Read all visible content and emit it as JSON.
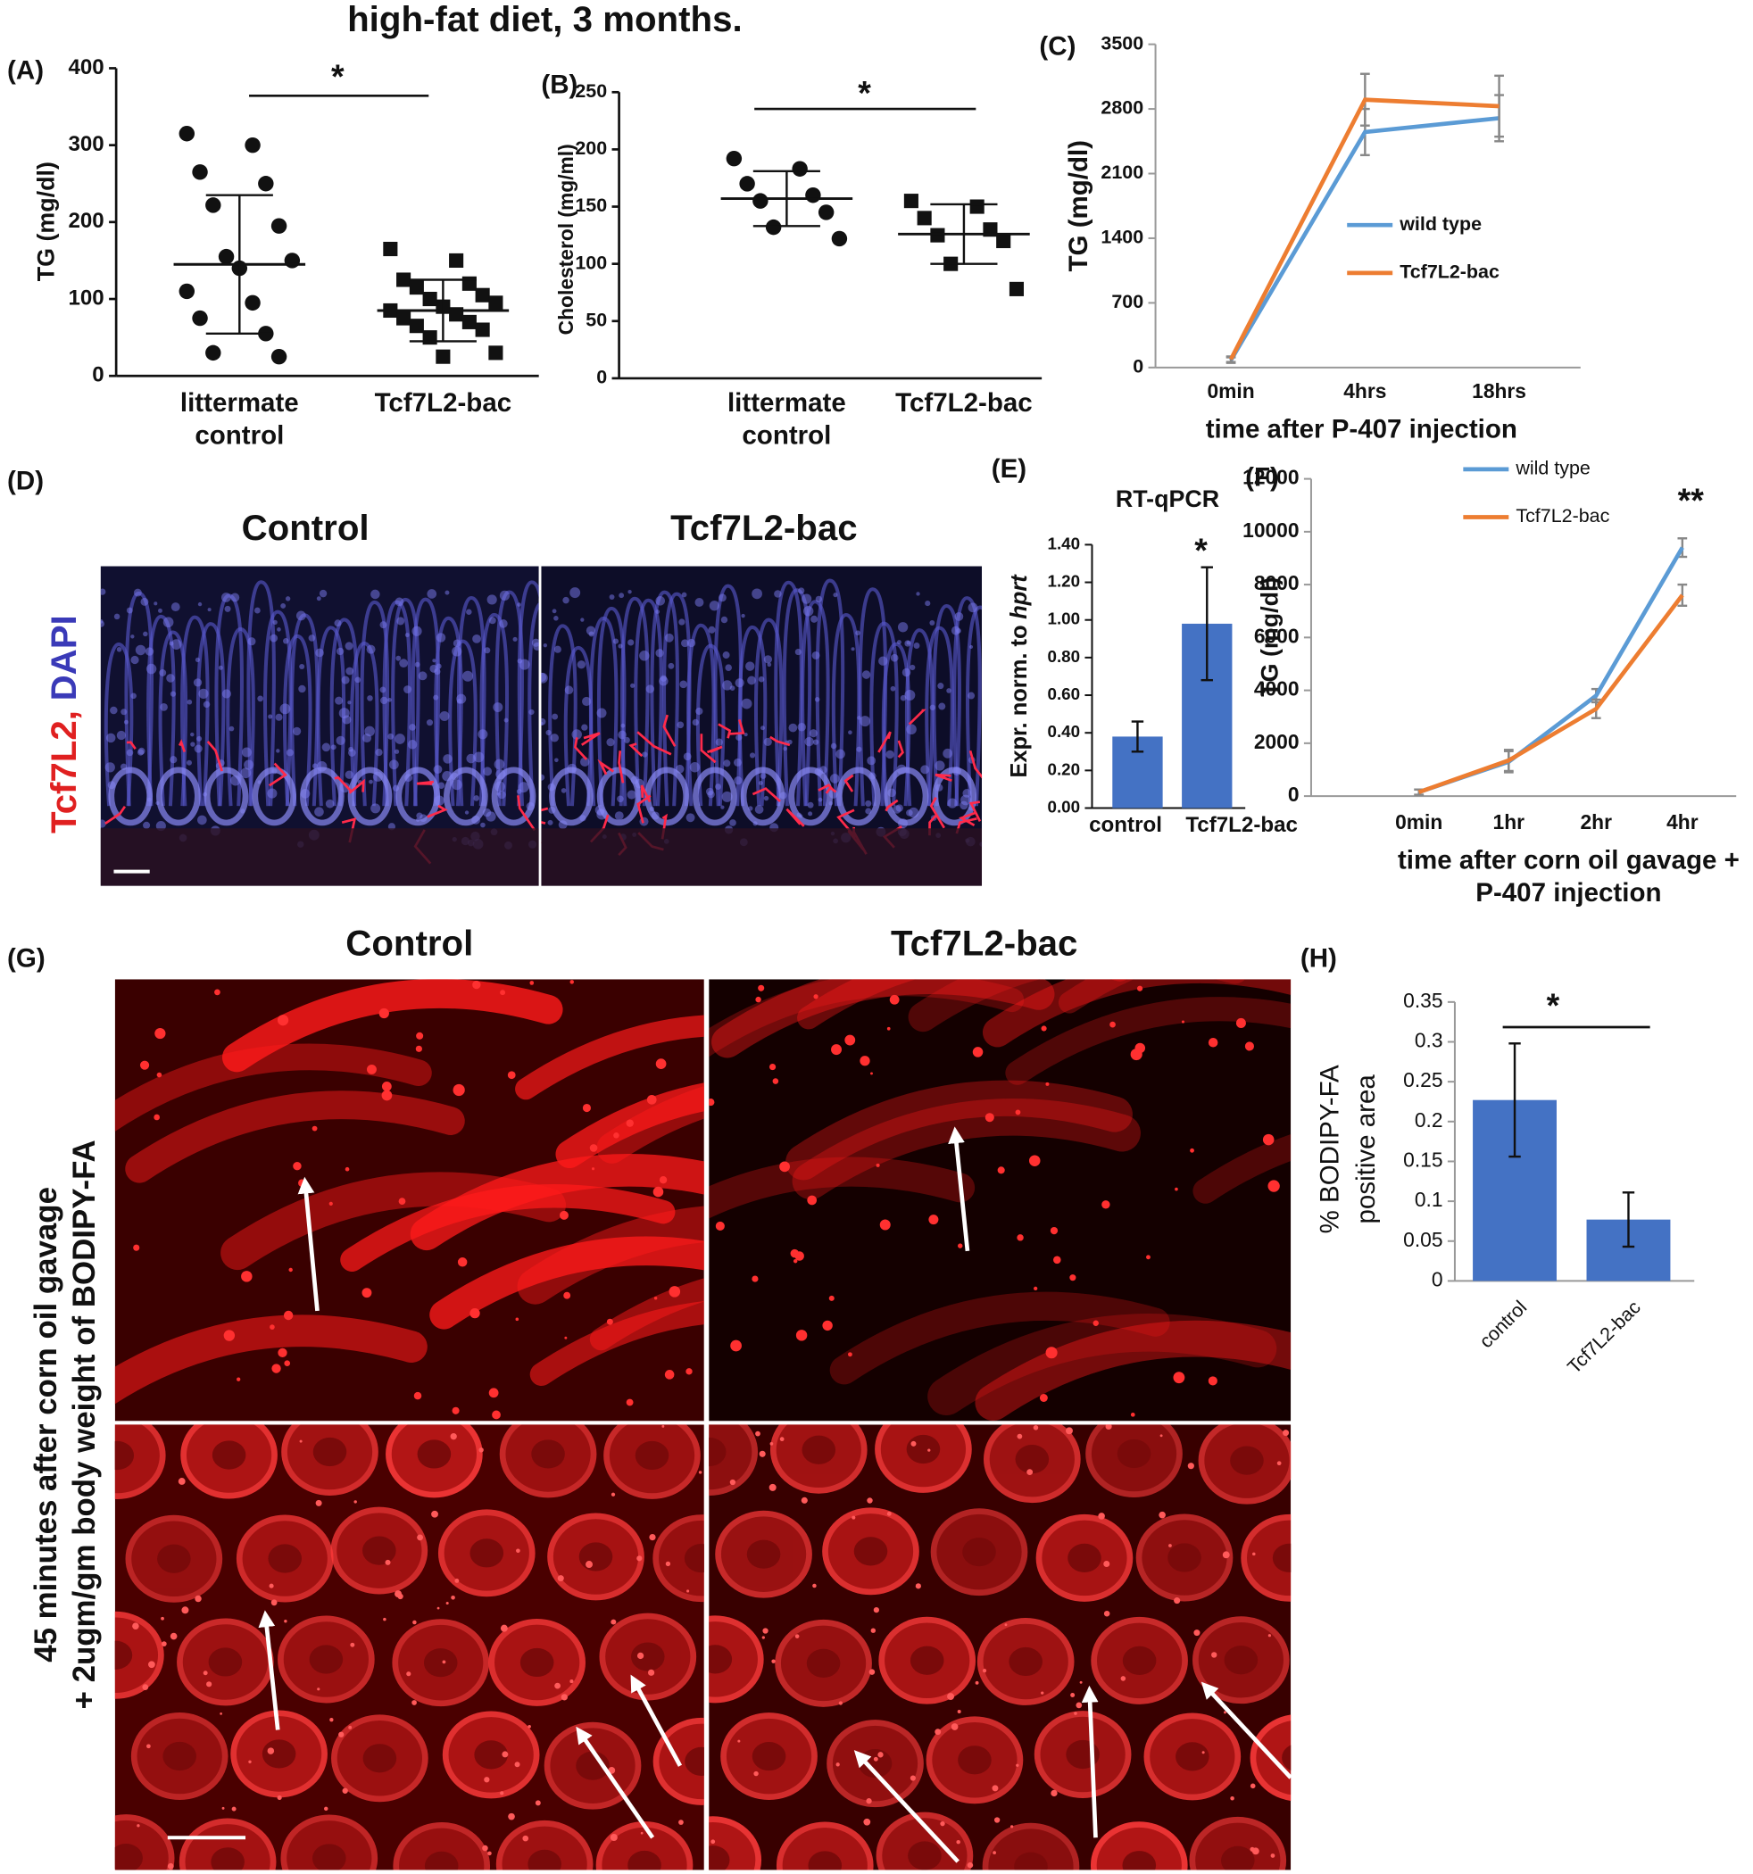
{
  "figure": {
    "title": "high-fat diet, 3 months.",
    "panel_labels": [
      "(A)",
      "(B)",
      "(C)",
      "(D)",
      "(E)",
      "(F)",
      "(G)",
      "(H)"
    ],
    "d": {
      "titles": [
        "Control",
        "Tcf7L2-bac"
      ],
      "stain_red": "Tcf7L2,",
      "stain_blue": "DAPI"
    },
    "g": {
      "titles": [
        "Control",
        "Tcf7L2-bac"
      ],
      "side_label": [
        "45 minutes after corn oil gavage",
        "+ 2ugm/gm body weight of BODIPY-FA"
      ]
    }
  },
  "chart_data": [
    {
      "type": "dot",
      "ylabel": "TG (mg/dl)",
      "categories": [
        [
          "littermate",
          "control"
        ],
        [
          "Tcf7L2-bac"
        ]
      ],
      "points": [
        [
          315,
          300,
          265,
          250,
          222,
          195,
          155,
          150,
          140,
          110,
          95,
          75,
          55,
          30,
          25
        ],
        [
          165,
          150,
          125,
          120,
          115,
          105,
          100,
          95,
          90,
          85,
          80,
          75,
          70,
          65,
          60,
          50,
          30,
          25
        ]
      ],
      "means": [
        145,
        85
      ],
      "sd": [
        90,
        40
      ],
      "markers": [
        "circle",
        "square"
      ],
      "color": "#111111",
      "ylim": [
        0,
        400
      ],
      "yticks": [
        0,
        100,
        200,
        300,
        400
      ],
      "significance": "*"
    },
    {
      "type": "dot",
      "ylabel": "Cholesterol (mg/ml)",
      "categories": [
        [
          "littermate",
          "control"
        ],
        [
          "Tcf7L2-bac"
        ]
      ],
      "points": [
        [
          192,
          183,
          170,
          160,
          155,
          145,
          132,
          122
        ],
        [
          155,
          150,
          140,
          130,
          125,
          120,
          100,
          78
        ]
      ],
      "means": [
        157,
        126
      ],
      "sd": [
        24,
        26
      ],
      "markers": [
        "circle",
        "square"
      ],
      "color": "#111111",
      "ylim": [
        0,
        250
      ],
      "yticks": [
        0,
        50,
        100,
        150,
        200,
        250
      ],
      "significance": "*"
    },
    {
      "type": "line",
      "ylabel": "TG (mg/dl)",
      "xlabel": [
        "time after P-407 injection"
      ],
      "categories": [
        "0min",
        "4hrs",
        "18hrs"
      ],
      "series": [
        {
          "name": "wild type",
          "color": "#5b9bd5",
          "values": [
            80,
            2550,
            2700
          ],
          "errors": [
            30,
            250,
            250
          ]
        },
        {
          "name": "Tcf7L2-bac",
          "color": "#ed7d31",
          "values": [
            90,
            2900,
            2830
          ],
          "errors": [
            30,
            280,
            330
          ]
        }
      ],
      "ylim": [
        0,
        3500
      ],
      "yticks": [
        0,
        700,
        1400,
        2100,
        2800,
        3500
      ],
      "legend": "center-right"
    },
    {
      "type": "bar",
      "title": "RT-qPCR",
      "ylabel": "Expr. norm. to",
      "ylabel_italic": "hprt",
      "categories": [
        "control",
        "Tcf7L2-bac"
      ],
      "values": [
        0.38,
        0.98
      ],
      "errors": [
        0.08,
        0.3
      ],
      "color": "#4472c4",
      "ylim": [
        0,
        1.4
      ],
      "yticks": [
        {
          "value": 0,
          "label": "0.00"
        },
        {
          "value": 0.2,
          "label": "0.20"
        },
        {
          "value": 0.4,
          "label": "0.40"
        },
        {
          "value": 0.6,
          "label": "0.60"
        },
        {
          "value": 0.8,
          "label": "0.80"
        },
        {
          "value": 1,
          "label": "1.00"
        },
        {
          "value": 1.2,
          "label": "1.20"
        },
        {
          "value": 1.4,
          "label": "1.40"
        }
      ],
      "significance": "*"
    },
    {
      "type": "line",
      "ylabel": "TG (mg/dl)",
      "xlabel": [
        "time after corn oil gavage +",
        "P-407 injection"
      ],
      "categories": [
        "0min",
        "1hr",
        "2hr",
        "4hr"
      ],
      "series": [
        {
          "name": "wild type",
          "color": "#5b9bd5",
          "values": [
            150,
            1300,
            3800,
            9400
          ],
          "errors": [
            100,
            400,
            250,
            350
          ]
        },
        {
          "name": "Tcf7L2-bac",
          "color": "#ed7d31",
          "values": [
            150,
            1350,
            3300,
            7600
          ],
          "errors": [
            100,
            400,
            350,
            400
          ]
        }
      ],
      "ylim": [
        0,
        12000
      ],
      "yticks": [
        0,
        2000,
        4000,
        6000,
        8000,
        10000,
        12000
      ],
      "legend": "top-left",
      "significance": "**"
    },
    {
      "type": "bar",
      "ylabel": [
        "% BODIPY-FA",
        "positive area"
      ],
      "categories": [
        "control",
        "Tcf7L2-bac"
      ],
      "values": [
        0.227,
        0.077
      ],
      "errors": [
        0.071,
        0.034
      ],
      "color": "#4472c4",
      "ylim": [
        0,
        0.35
      ],
      "yticks": [
        0,
        0.05,
        0.1,
        0.15,
        0.2,
        0.25,
        0.3,
        0.35
      ],
      "significance": "*"
    }
  ]
}
